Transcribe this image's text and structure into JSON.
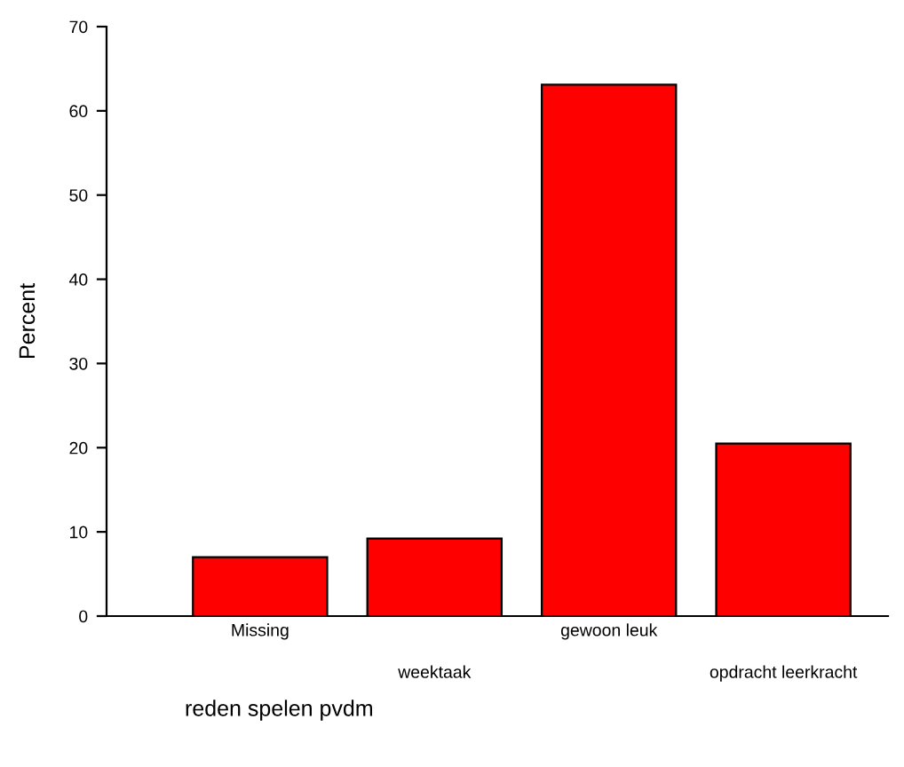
{
  "chart_data": {
    "type": "bar",
    "xlabel": "reden spelen pvdm",
    "ylabel": "Percent",
    "categories": [
      "Missing",
      "weektaak",
      "gewoon leuk",
      "opdracht leerkracht"
    ],
    "values": [
      7.0,
      9.2,
      63.1,
      20.5
    ],
    "color": "#ff0000",
    "ylim": [
      0,
      70
    ],
    "yticks": [
      0,
      10,
      20,
      30,
      40,
      50,
      60,
      70
    ],
    "grid": false,
    "legend": false
  }
}
